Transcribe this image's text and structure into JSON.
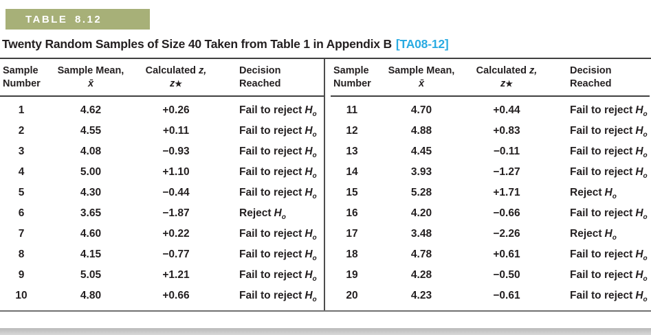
{
  "banner": {
    "label": "TABLE 8.12"
  },
  "title": {
    "text": "Twenty Random Samples of Size 40 Taken from Table 1 in Appendix B",
    "tag": "[TA08-12]"
  },
  "colors": {
    "banner_bg": "#a7b078",
    "tag_text": "#29abe2",
    "body_text": "#231f20",
    "rule": "#3f3f3f",
    "bottom_strip": "#c9c9c9"
  },
  "columns": {
    "sample_l1": "Sample",
    "sample_l2": "Number",
    "mean_l1": "Sample Mean,",
    "mean_l2": "x̄",
    "z_l1a": "Calculated ",
    "z_l1b": "z,",
    "z_l2a": "z",
    "z_l2b": "★",
    "decision_l1": "Decision",
    "decision_l2": "Reached"
  },
  "symbols": {
    "h": "H",
    "h_sub": "o"
  },
  "rows_left": [
    {
      "n": "1",
      "mean": "4.62",
      "z": "+0.26",
      "decision": "Fail to reject"
    },
    {
      "n": "2",
      "mean": "4.55",
      "z": "+0.11",
      "decision": "Fail to reject"
    },
    {
      "n": "3",
      "mean": "4.08",
      "z": "−0.93",
      "decision": "Fail to reject"
    },
    {
      "n": "4",
      "mean": "5.00",
      "z": "+1.10",
      "decision": "Fail to reject"
    },
    {
      "n": "5",
      "mean": "4.30",
      "z": "−0.44",
      "decision": "Fail to reject"
    },
    {
      "n": "6",
      "mean": "3.65",
      "z": "−1.87",
      "decision": "Reject"
    },
    {
      "n": "7",
      "mean": "4.60",
      "z": "+0.22",
      "decision": "Fail to reject"
    },
    {
      "n": "8",
      "mean": "4.15",
      "z": "−0.77",
      "decision": "Fail to reject"
    },
    {
      "n": "9",
      "mean": "5.05",
      "z": "+1.21",
      "decision": "Fail to reject"
    },
    {
      "n": "10",
      "mean": "4.80",
      "z": "+0.66",
      "decision": "Fail to reject"
    }
  ],
  "rows_right": [
    {
      "n": "11",
      "mean": "4.70",
      "z": "+0.44",
      "decision": "Fail to reject"
    },
    {
      "n": "12",
      "mean": "4.88",
      "z": "+0.83",
      "decision": "Fail to reject"
    },
    {
      "n": "13",
      "mean": "4.45",
      "z": "−0.11",
      "decision": "Fail to reject"
    },
    {
      "n": "14",
      "mean": "3.93",
      "z": "−1.27",
      "decision": "Fail to reject"
    },
    {
      "n": "15",
      "mean": "5.28",
      "z": "+1.71",
      "decision": "Reject"
    },
    {
      "n": "16",
      "mean": "4.20",
      "z": "−0.66",
      "decision": "Fail to reject"
    },
    {
      "n": "17",
      "mean": "3.48",
      "z": "−2.26",
      "decision": "Reject"
    },
    {
      "n": "18",
      "mean": "4.78",
      "z": "+0.61",
      "decision": "Fail to reject"
    },
    {
      "n": "19",
      "mean": "4.28",
      "z": "−0.50",
      "decision": "Fail to reject"
    },
    {
      "n": "20",
      "mean": "4.23",
      "z": "−0.61",
      "decision": "Fail to reject"
    }
  ]
}
